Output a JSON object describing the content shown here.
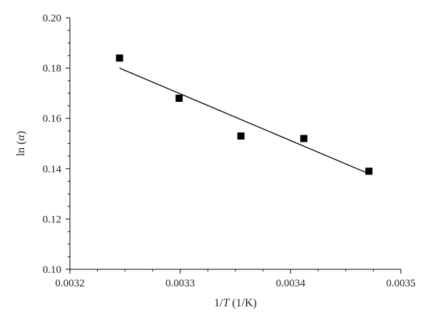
{
  "chart_data": {
    "type": "scatter",
    "title": "",
    "xlabel": {
      "prefix": "1/",
      "italic": "T",
      "suffix": " (1/K)"
    },
    "ylabel": {
      "prefix": "ln (",
      "italic": "α",
      "suffix": ")"
    },
    "xlim": [
      0.0032,
      0.0035
    ],
    "ylim": [
      0.1,
      0.2
    ],
    "xticks": [
      "0.0032",
      "0.0033",
      "0.0034",
      "0.0035"
    ],
    "yticks": [
      "0.10",
      "0.12",
      "0.14",
      "0.16",
      "0.18",
      "0.20"
    ],
    "grid": false,
    "legend": "none",
    "marker_color": "#000000",
    "line_color": "#000000",
    "points": [
      {
        "x": 0.003245,
        "y": 0.184
      },
      {
        "x": 0.003299,
        "y": 0.168
      },
      {
        "x": 0.003355,
        "y": 0.153
      },
      {
        "x": 0.003412,
        "y": 0.152
      },
      {
        "x": 0.003471,
        "y": 0.139
      }
    ],
    "trendline": {
      "type": "linear",
      "x": [
        0.003245,
        0.003471
      ],
      "y": [
        0.18,
        0.138
      ]
    }
  }
}
